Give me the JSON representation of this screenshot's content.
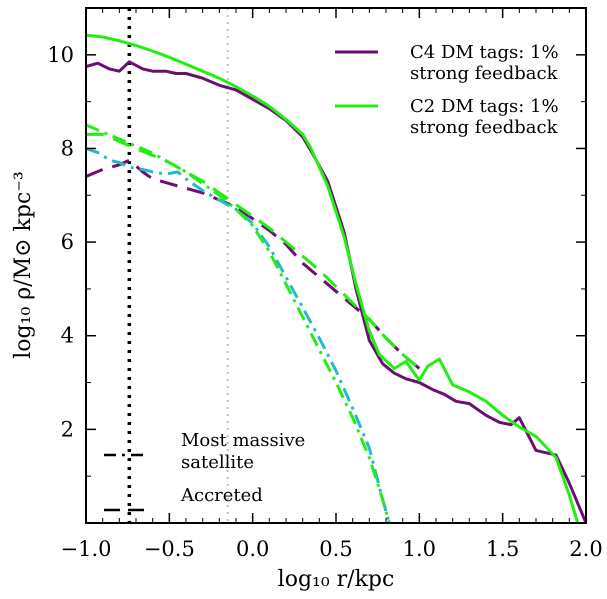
{
  "chart_data": {
    "type": "line",
    "xlabel": "log₁₀ r/kpc",
    "ylabel": "log₁₀ ρ/M⊙ kpc⁻³",
    "xlim": [
      -1.0,
      2.0
    ],
    "ylim": [
      0.0,
      11.0
    ],
    "x_ticks": [
      -1.0,
      -0.5,
      0.0,
      0.5,
      1.0,
      1.5,
      2.0
    ],
    "x_tick_labels": [
      "−1.0",
      "−0.5",
      "0.0",
      "0.5",
      "1.0",
      "1.5",
      "2.0"
    ],
    "y_ticks": [
      2,
      4,
      6,
      8,
      10
    ],
    "y_tick_labels": [
      "2",
      "4",
      "6",
      "8",
      "10"
    ],
    "grid": false,
    "legend_position": "top-right",
    "legend": [
      {
        "name": "C4 DM tags: 1%",
        "name2": "strong feedback",
        "color": "#6b0f73"
      },
      {
        "name": "C2 DM tags: 1%",
        "name2": "strong feedback",
        "color": "#22ee11"
      }
    ],
    "style_legend": [
      {
        "name": "Most massive",
        "name2": "satellite",
        "dash": "dashdot"
      },
      {
        "name": "Accreted",
        "name2": "",
        "dash": "dash"
      }
    ],
    "vlines": [
      {
        "x": -0.74,
        "color": "#000000",
        "style": "dotted"
      },
      {
        "x": -0.15,
        "color": "#c0c0c0",
        "style": "dotted"
      }
    ],
    "series": [
      {
        "key": "c4_total",
        "color": "#6b0f73",
        "dash": "solid",
        "x": [
          -1.0,
          -0.93,
          -0.86,
          -0.8,
          -0.74,
          -0.66,
          -0.6,
          -0.52,
          -0.46,
          -0.4,
          -0.3,
          -0.2,
          -0.1,
          0.0,
          0.1,
          0.2,
          0.3,
          0.35,
          0.45,
          0.55,
          0.62,
          0.7,
          0.78,
          0.85,
          0.92,
          1.0,
          1.08,
          1.15,
          1.22,
          1.3,
          1.4,
          1.48,
          1.55,
          1.6,
          1.7,
          1.82,
          1.9,
          2.0
        ],
        "y": [
          9.75,
          9.82,
          9.7,
          9.65,
          9.85,
          9.7,
          9.65,
          9.65,
          9.6,
          9.6,
          9.5,
          9.35,
          9.25,
          9.05,
          8.85,
          8.6,
          8.25,
          7.95,
          7.3,
          6.2,
          5.0,
          3.9,
          3.4,
          3.2,
          3.08,
          3.0,
          2.85,
          2.75,
          2.6,
          2.55,
          2.3,
          2.15,
          2.1,
          2.25,
          1.55,
          1.45,
          0.85,
          0.0
        ]
      },
      {
        "key": "c2_total",
        "color": "#22ee11",
        "dash": "solid",
        "x": [
          -1.0,
          -0.9,
          -0.8,
          -0.7,
          -0.6,
          -0.5,
          -0.4,
          -0.3,
          -0.2,
          -0.1,
          0.0,
          0.1,
          0.2,
          0.3,
          0.35,
          0.45,
          0.55,
          0.62,
          0.7,
          0.76,
          0.85,
          0.92,
          1.0,
          1.05,
          1.12,
          1.2,
          1.3,
          1.4,
          1.5,
          1.6,
          1.7,
          1.82,
          1.9,
          1.95
        ],
        "y": [
          10.42,
          10.38,
          10.3,
          10.2,
          10.08,
          9.95,
          9.8,
          9.65,
          9.5,
          9.32,
          9.12,
          8.9,
          8.62,
          8.3,
          8.0,
          7.2,
          6.1,
          5.1,
          4.1,
          3.6,
          3.3,
          3.45,
          3.05,
          3.35,
          3.5,
          2.95,
          2.8,
          2.6,
          2.3,
          2.05,
          1.85,
          1.4,
          0.6,
          0.0
        ]
      },
      {
        "key": "c4_accreted",
        "color": "#6b0f73",
        "dash": "dash",
        "x": [
          -1.0,
          -0.9,
          -0.8,
          -0.74,
          -0.66,
          -0.6,
          -0.5,
          -0.4,
          -0.3,
          -0.2,
          -0.1,
          0.0,
          0.1,
          0.2,
          0.3,
          0.4,
          0.5,
          0.6,
          0.7,
          0.8,
          0.9,
          1.0
        ],
        "y": [
          7.4,
          7.55,
          7.65,
          7.75,
          7.5,
          7.35,
          7.25,
          7.15,
          7.05,
          6.9,
          6.75,
          6.5,
          6.25,
          5.95,
          5.55,
          5.25,
          4.95,
          4.65,
          4.35,
          3.95,
          3.6,
          3.3
        ]
      },
      {
        "key": "c2_accreted",
        "color": "#22ee11",
        "dash": "dash",
        "x": [
          -1.0,
          -0.9,
          -0.8,
          -0.7,
          -0.6,
          -0.5,
          -0.4,
          -0.3,
          -0.2,
          -0.1,
          0.0,
          0.1,
          0.2,
          0.3,
          0.4,
          0.5,
          0.6,
          0.7,
          0.8,
          0.9,
          1.0
        ],
        "y": [
          8.3,
          8.3,
          8.15,
          8.0,
          7.85,
          7.7,
          7.5,
          7.3,
          7.05,
          6.8,
          6.55,
          6.3,
          6.0,
          5.7,
          5.4,
          5.05,
          4.7,
          4.35,
          3.95,
          3.6,
          3.3
        ]
      },
      {
        "key": "c4_satellite",
        "color": "#22bbcc",
        "dash": "dashdot",
        "x": [
          -1.0,
          -0.92,
          -0.86,
          -0.8,
          -0.74,
          -0.66,
          -0.6,
          -0.52,
          -0.45,
          -0.4,
          -0.3,
          -0.2,
          -0.1,
          0.0,
          0.1,
          0.2,
          0.3,
          0.4,
          0.5,
          0.6,
          0.7,
          0.78,
          0.82
        ],
        "y": [
          8.0,
          7.9,
          7.75,
          7.7,
          7.6,
          7.55,
          7.5,
          7.45,
          7.5,
          7.35,
          7.1,
          6.9,
          6.7,
          6.4,
          5.9,
          5.25,
          4.6,
          3.95,
          3.25,
          2.45,
          1.6,
          0.5,
          0.0
        ]
      },
      {
        "key": "c2_satellite",
        "color": "#22ee11",
        "dash": "dashdot",
        "x": [
          -1.0,
          -0.9,
          -0.8,
          -0.7,
          -0.6,
          -0.5,
          -0.4,
          -0.3,
          -0.2,
          -0.1,
          0.0,
          0.1,
          0.2,
          0.3,
          0.4,
          0.5,
          0.6,
          0.7,
          0.78,
          0.82
        ],
        "y": [
          8.5,
          8.35,
          8.2,
          8.05,
          7.9,
          7.7,
          7.5,
          7.25,
          7.0,
          6.7,
          6.35,
          5.8,
          5.1,
          4.4,
          3.7,
          3.0,
          2.25,
          1.4,
          0.5,
          0.0
        ]
      }
    ]
  }
}
